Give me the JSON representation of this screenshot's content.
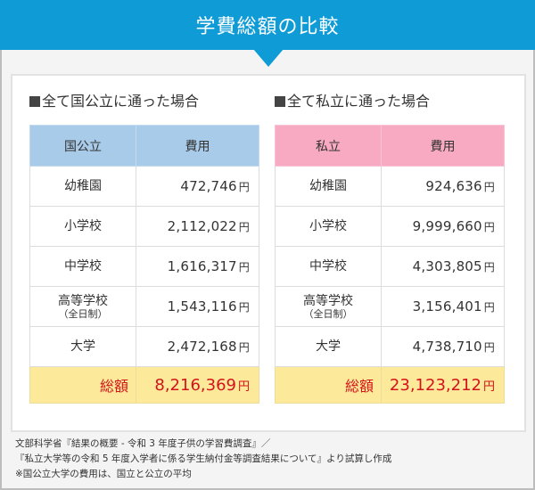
{
  "title": "学費総額の比較",
  "colors": {
    "title_bar": "#0e9bd6",
    "public_header": "#a8cbe9",
    "private_header": "#f8aac3",
    "total_row_bg": "#fde99a",
    "total_text": "#d4131b"
  },
  "public": {
    "section_title": "全て国公立に通った場合",
    "header": {
      "col1": "国公立",
      "col2": "費用"
    },
    "currency": "円",
    "rows": [
      {
        "label": "幼稚園",
        "sub": "",
        "value": "472,746"
      },
      {
        "label": "小学校",
        "sub": "",
        "value": "2,112,022"
      },
      {
        "label": "中学校",
        "sub": "",
        "value": "1,616,317"
      },
      {
        "label": "高等学校",
        "sub": "（全日制）",
        "value": "1,543,116"
      },
      {
        "label": "大学",
        "sub": "",
        "value": "2,472,168"
      }
    ],
    "total": {
      "label": "総額",
      "value": "8,216,369"
    }
  },
  "private": {
    "section_title": "全て私立に通った場合",
    "header": {
      "col1": "私立",
      "col2": "費用"
    },
    "currency": "円",
    "rows": [
      {
        "label": "幼稚園",
        "sub": "",
        "value": "924,636"
      },
      {
        "label": "小学校",
        "sub": "",
        "value": "9,999,660"
      },
      {
        "label": "中学校",
        "sub": "",
        "value": "4,303,805"
      },
      {
        "label": "高等学校",
        "sub": "（全日制）",
        "value": "3,156,401"
      },
      {
        "label": "大学",
        "sub": "",
        "value": "4,738,710"
      }
    ],
    "total": {
      "label": "総額",
      "value": "23,123,212"
    }
  },
  "footnote": {
    "line1": "文部科学省『結果の概要 - 令和 3 年度子供の学習費調査』／",
    "line2": "『私立大学等の令和 5 年度入学者に係る学生納付金等調査結果について』より試算し作成",
    "line3": "※国公立大学の費用は、国立と公立の平均"
  }
}
